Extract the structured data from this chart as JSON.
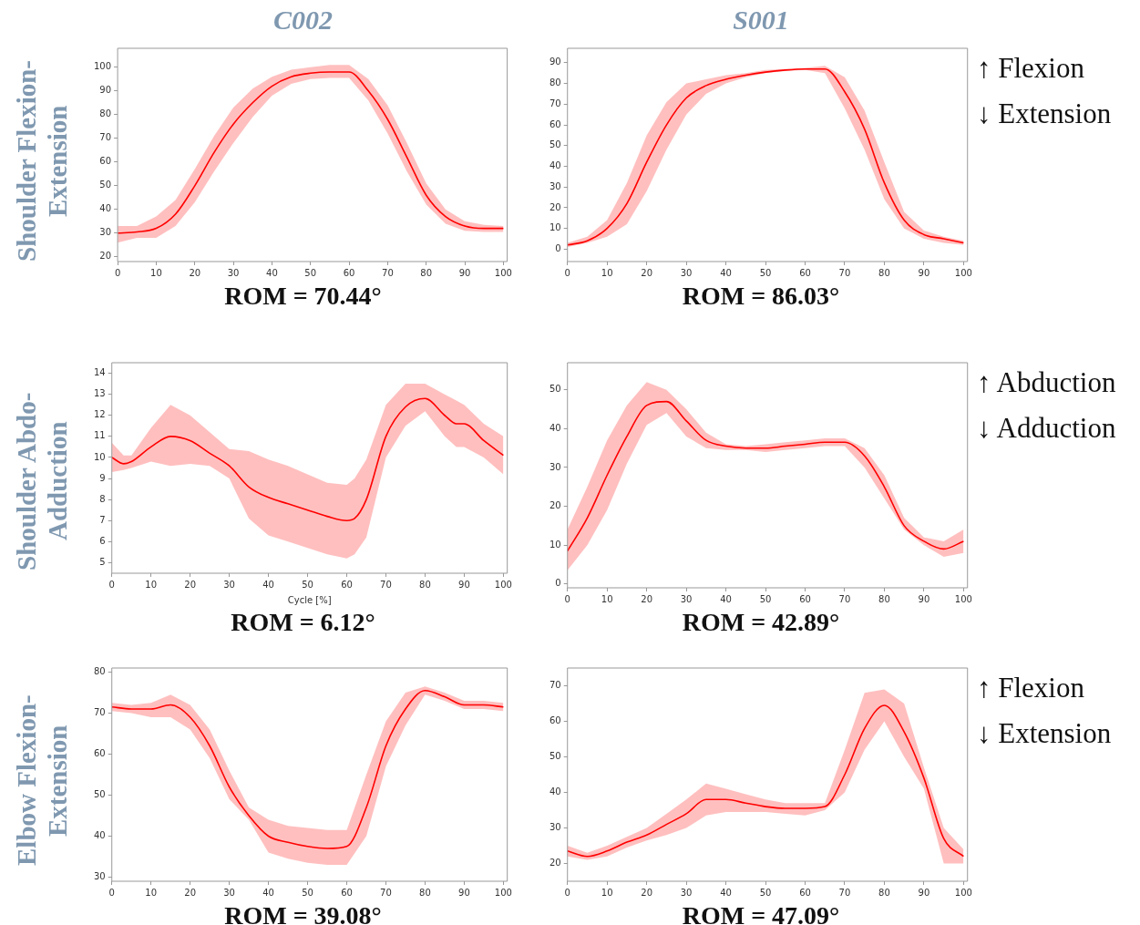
{
  "chart_data": [
    {
      "type": "line",
      "title": "C002",
      "ylabel": "Shoulder Flexion-Extension",
      "annotations": [
        "ROM = 70.44°"
      ],
      "x": [
        0,
        5,
        10,
        15,
        20,
        25,
        30,
        35,
        40,
        45,
        50,
        55,
        60,
        65,
        70,
        75,
        80,
        85,
        90,
        95,
        100
      ],
      "xlim": [
        0,
        101
      ],
      "xticks": [
        0,
        10,
        20,
        30,
        40,
        50,
        60,
        70,
        80,
        90,
        100
      ],
      "ylim": [
        18,
        108
      ],
      "yticks": [
        20,
        30,
        40,
        50,
        60,
        70,
        80,
        90,
        100
      ],
      "series": [
        {
          "color": "#ff0000",
          "values": [
            30,
            30.5,
            32,
            38,
            50,
            64,
            76,
            85,
            92,
            96,
            97.5,
            98,
            98,
            90,
            78,
            62,
            46,
            37,
            33,
            32,
            32
          ],
          "lower": [
            26,
            28,
            28,
            33,
            43,
            56,
            68,
            79,
            88,
            93,
            95,
            95.5,
            95.5,
            86,
            72,
            56,
            42,
            34,
            31,
            30.5,
            30.5
          ],
          "upper": [
            33,
            33,
            37,
            44,
            57,
            71,
            83,
            91,
            96,
            99,
            100,
            101,
            101,
            95,
            84,
            68,
            51,
            40,
            35,
            33.5,
            33
          ]
        }
      ]
    },
    {
      "type": "line",
      "title": "S001",
      "annotations": [
        "ROM = 86.03°",
        "↑ Flexion",
        "↓ Extension"
      ],
      "x": [
        0,
        5,
        10,
        15,
        20,
        25,
        30,
        35,
        40,
        45,
        50,
        55,
        60,
        65,
        70,
        75,
        80,
        85,
        90,
        95,
        100
      ],
      "xlim": [
        0,
        101
      ],
      "xticks": [
        0,
        10,
        20,
        30,
        40,
        50,
        60,
        70,
        80,
        90,
        100
      ],
      "ylim": [
        -6,
        97
      ],
      "yticks": [
        0,
        10,
        20,
        30,
        40,
        50,
        60,
        70,
        80,
        90
      ],
      "series": [
        {
          "color": "#ff0000",
          "values": [
            2,
            4,
            10,
            22,
            42,
            60,
            73,
            79,
            82,
            84,
            85.5,
            86.5,
            87,
            87,
            76,
            58,
            32,
            14,
            7,
            5,
            3
          ],
          "lower": [
            1,
            3,
            6,
            12,
            28,
            48,
            65,
            75,
            80,
            83,
            85,
            86,
            86.5,
            85,
            68,
            48,
            24,
            10,
            5,
            3,
            2
          ],
          "upper": [
            3,
            6,
            14,
            32,
            55,
            71,
            80,
            82,
            84,
            85,
            86.5,
            87,
            87.5,
            88.5,
            83,
            67,
            42,
            18,
            9,
            6,
            4
          ]
        }
      ]
    },
    {
      "type": "line",
      "xlabel": "Cycle [%]",
      "ylabel": "Shoulder Abdo-Adduction",
      "annotations": [
        "ROM = 6.12°"
      ],
      "x": [
        0,
        3,
        5,
        10,
        15,
        20,
        25,
        30,
        35,
        40,
        45,
        50,
        55,
        60,
        62,
        65,
        70,
        75,
        80,
        85,
        88,
        90,
        95,
        100
      ],
      "xlim": [
        0,
        101
      ],
      "xticks": [
        0,
        10,
        20,
        30,
        40,
        50,
        60,
        70,
        80,
        90,
        100
      ],
      "ylim": [
        4.5,
        14.5
      ],
      "yticks": [
        5,
        6,
        7,
        8,
        9,
        10,
        11,
        12,
        13,
        14
      ],
      "series": [
        {
          "color": "#ff0000",
          "values": [
            10,
            9.7,
            9.8,
            10.5,
            11,
            10.8,
            10.2,
            9.6,
            8.6,
            8.1,
            7.8,
            7.5,
            7.2,
            7,
            7.1,
            8,
            11,
            12.4,
            12.8,
            12,
            11.6,
            11.6,
            10.8,
            10.1
          ],
          "lower": [
            9.3,
            9.4,
            9.5,
            9.8,
            9.6,
            9.7,
            9.6,
            9,
            7.1,
            6.3,
            6,
            5.7,
            5.4,
            5.2,
            5.4,
            6.2,
            10,
            11.5,
            12.2,
            11,
            10.5,
            10.5,
            10,
            9.2
          ],
          "upper": [
            10.7,
            10.1,
            10.1,
            11.4,
            12.5,
            12,
            11.2,
            10.4,
            10.3,
            9.9,
            9.6,
            9.2,
            8.8,
            8.7,
            9,
            9.9,
            12.5,
            13.5,
            13.5,
            13,
            12.7,
            12.5,
            11.6,
            11
          ]
        }
      ]
    },
    {
      "type": "line",
      "annotations": [
        "ROM = 42.89°",
        "↑ Abduction",
        "↓ Adduction"
      ],
      "x": [
        0,
        5,
        10,
        15,
        20,
        25,
        30,
        35,
        40,
        45,
        50,
        55,
        60,
        65,
        70,
        75,
        80,
        85,
        90,
        95,
        100
      ],
      "xlim": [
        0,
        101
      ],
      "xticks": [
        0,
        10,
        20,
        30,
        40,
        50,
        60,
        70,
        80,
        90,
        100
      ],
      "ylim": [
        -1,
        57
      ],
      "yticks": [
        0,
        10,
        20,
        30,
        40,
        50
      ],
      "series": [
        {
          "color": "#ff0000",
          "values": [
            8.5,
            17,
            28,
            38,
            46,
            47,
            42,
            37,
            35.5,
            35,
            35,
            35.5,
            36,
            36.5,
            36.5,
            33,
            25,
            15,
            11,
            9,
            11
          ],
          "lower": [
            3.5,
            10,
            19,
            31,
            41,
            44,
            38,
            35,
            34.5,
            34.5,
            34,
            34.5,
            35,
            35.5,
            35.5,
            30,
            22,
            14,
            10,
            7,
            8
          ],
          "upper": [
            14,
            25,
            37,
            46,
            52,
            50,
            45,
            39,
            36,
            35.5,
            36,
            36.5,
            37,
            37.5,
            37.5,
            35,
            28,
            17,
            12,
            11,
            14
          ]
        }
      ]
    },
    {
      "type": "line",
      "ylabel": "Elbow Flexion-Extension",
      "annotations": [
        "ROM = 39.08°"
      ],
      "x": [
        0,
        5,
        10,
        15,
        20,
        25,
        30,
        35,
        40,
        45,
        50,
        55,
        60,
        65,
        70,
        75,
        80,
        85,
        90,
        95,
        100
      ],
      "xlim": [
        0,
        101
      ],
      "xticks": [
        0,
        10,
        20,
        30,
        40,
        50,
        60,
        70,
        80,
        90,
        100
      ],
      "ylim": [
        29,
        81
      ],
      "yticks": [
        30,
        40,
        50,
        60,
        70,
        80
      ],
      "series": [
        {
          "color": "#ff0000",
          "values": [
            71.5,
            71,
            71,
            72,
            69,
            62,
            52,
            45,
            40,
            38.5,
            37.5,
            37,
            37.5,
            47,
            62,
            71,
            75.5,
            74,
            72,
            72,
            71.5
          ],
          "lower": [
            70.5,
            70,
            69,
            69,
            66,
            59,
            49,
            44,
            36,
            34.5,
            33.5,
            33,
            33,
            40,
            57,
            67,
            74.5,
            73,
            71,
            71,
            70.5
          ],
          "upper": [
            72.5,
            72,
            72.5,
            74.5,
            72,
            66,
            56,
            47,
            44,
            42.5,
            42,
            41.5,
            41.5,
            55,
            68,
            75,
            76.5,
            75,
            73,
            73,
            72.5
          ]
        }
      ]
    },
    {
      "type": "line",
      "annotations": [
        "ROM = 47.09°",
        "↑ Flexion",
        "↓ Extension"
      ],
      "x": [
        0,
        5,
        10,
        15,
        20,
        25,
        30,
        35,
        40,
        45,
        50,
        55,
        60,
        65,
        70,
        75,
        80,
        85,
        90,
        95,
        100
      ],
      "xlim": [
        0,
        101
      ],
      "xticks": [
        0,
        10,
        20,
        30,
        40,
        50,
        60,
        70,
        80,
        90,
        100
      ],
      "ylim": [
        15,
        75
      ],
      "yticks": [
        20,
        30,
        40,
        50,
        60,
        70
      ],
      "series": [
        {
          "color": "#ff0000",
          "values": [
            23.5,
            22,
            23.5,
            26,
            28,
            31,
            34,
            38,
            38,
            37,
            36,
            35.5,
            35.5,
            36,
            45,
            58,
            64.5,
            57,
            44,
            27,
            22
          ],
          "lower": [
            22,
            21,
            22,
            24.5,
            26.5,
            28,
            30,
            33.5,
            34.5,
            34.5,
            34.5,
            34,
            33.5,
            35,
            40,
            52,
            60,
            50,
            41,
            20,
            20
          ],
          "upper": [
            25,
            23,
            25,
            27.5,
            30,
            34,
            38,
            42.5,
            41,
            39.5,
            38,
            37,
            37,
            37,
            52,
            68,
            69,
            65,
            47,
            30,
            24
          ]
        }
      ]
    }
  ]
}
